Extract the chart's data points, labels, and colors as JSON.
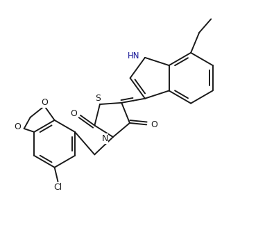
{
  "bg_color": "#ffffff",
  "line_color": "#1a1a1a",
  "lw": 1.4,
  "figsize": [
    3.95,
    3.41
  ],
  "dpi": 100,
  "xlim": [
    0.0,
    7.8
  ],
  "ylim": [
    -0.5,
    6.5
  ]
}
